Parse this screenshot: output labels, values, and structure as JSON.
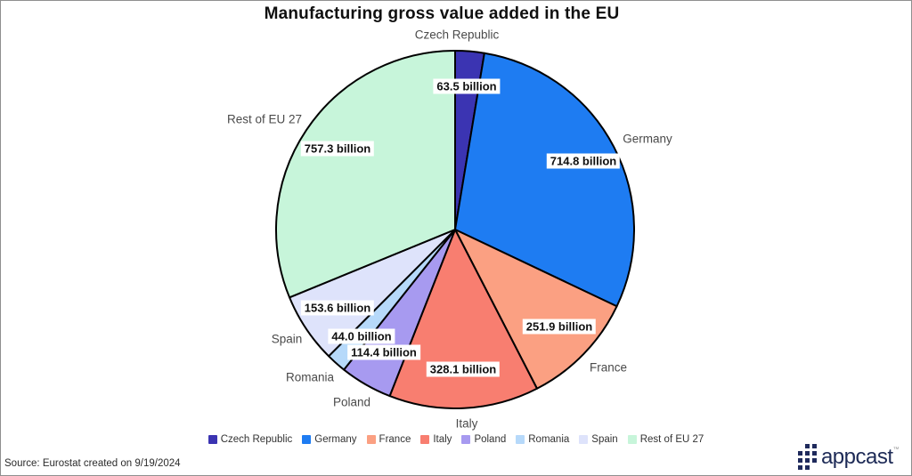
{
  "title": "Manufacturing gross value added in the EU",
  "source_note": "Source: Eurostat created on 9/19/2024",
  "logo": {
    "text": "appcast",
    "tm": "™"
  },
  "chart_data": {
    "type": "pie",
    "title": "Manufacturing gross value added in the EU",
    "unit": "billion EUR",
    "start_angle_deg": 0,
    "direction": "clockwise",
    "stroke_color": "#000000",
    "legend_position": "bottom",
    "slices": [
      {
        "label": "Czech Republic",
        "value": 63.5,
        "display": "63.5 billion",
        "color": "#3b34b2"
      },
      {
        "label": "Germany",
        "value": 714.8,
        "display": "714.8 billion",
        "color": "#1e7cf2"
      },
      {
        "label": "France",
        "value": 251.9,
        "display": "251.9 billion",
        "color": "#fba082"
      },
      {
        "label": "Italy",
        "value": 328.1,
        "display": "328.1 billion",
        "color": "#f87e70"
      },
      {
        "label": "Poland",
        "value": 114.4,
        "display": "114.4 billion",
        "color": "#a79af0"
      },
      {
        "label": "Romania",
        "value": 44.0,
        "display": "44.0 billion",
        "color": "#b6d9fa"
      },
      {
        "label": "Spain",
        "value": 153.6,
        "display": "153.6 billion",
        "color": "#dee3fb"
      },
      {
        "label": "Rest of EU 27",
        "value": 757.3,
        "display": "757.3 billion",
        "color": "#c7f5da"
      }
    ],
    "legend": [
      "Czech Republic",
      "Germany",
      "France",
      "Italy",
      "Poland",
      "Romania",
      "Spain",
      "Rest of EU 27"
    ]
  }
}
